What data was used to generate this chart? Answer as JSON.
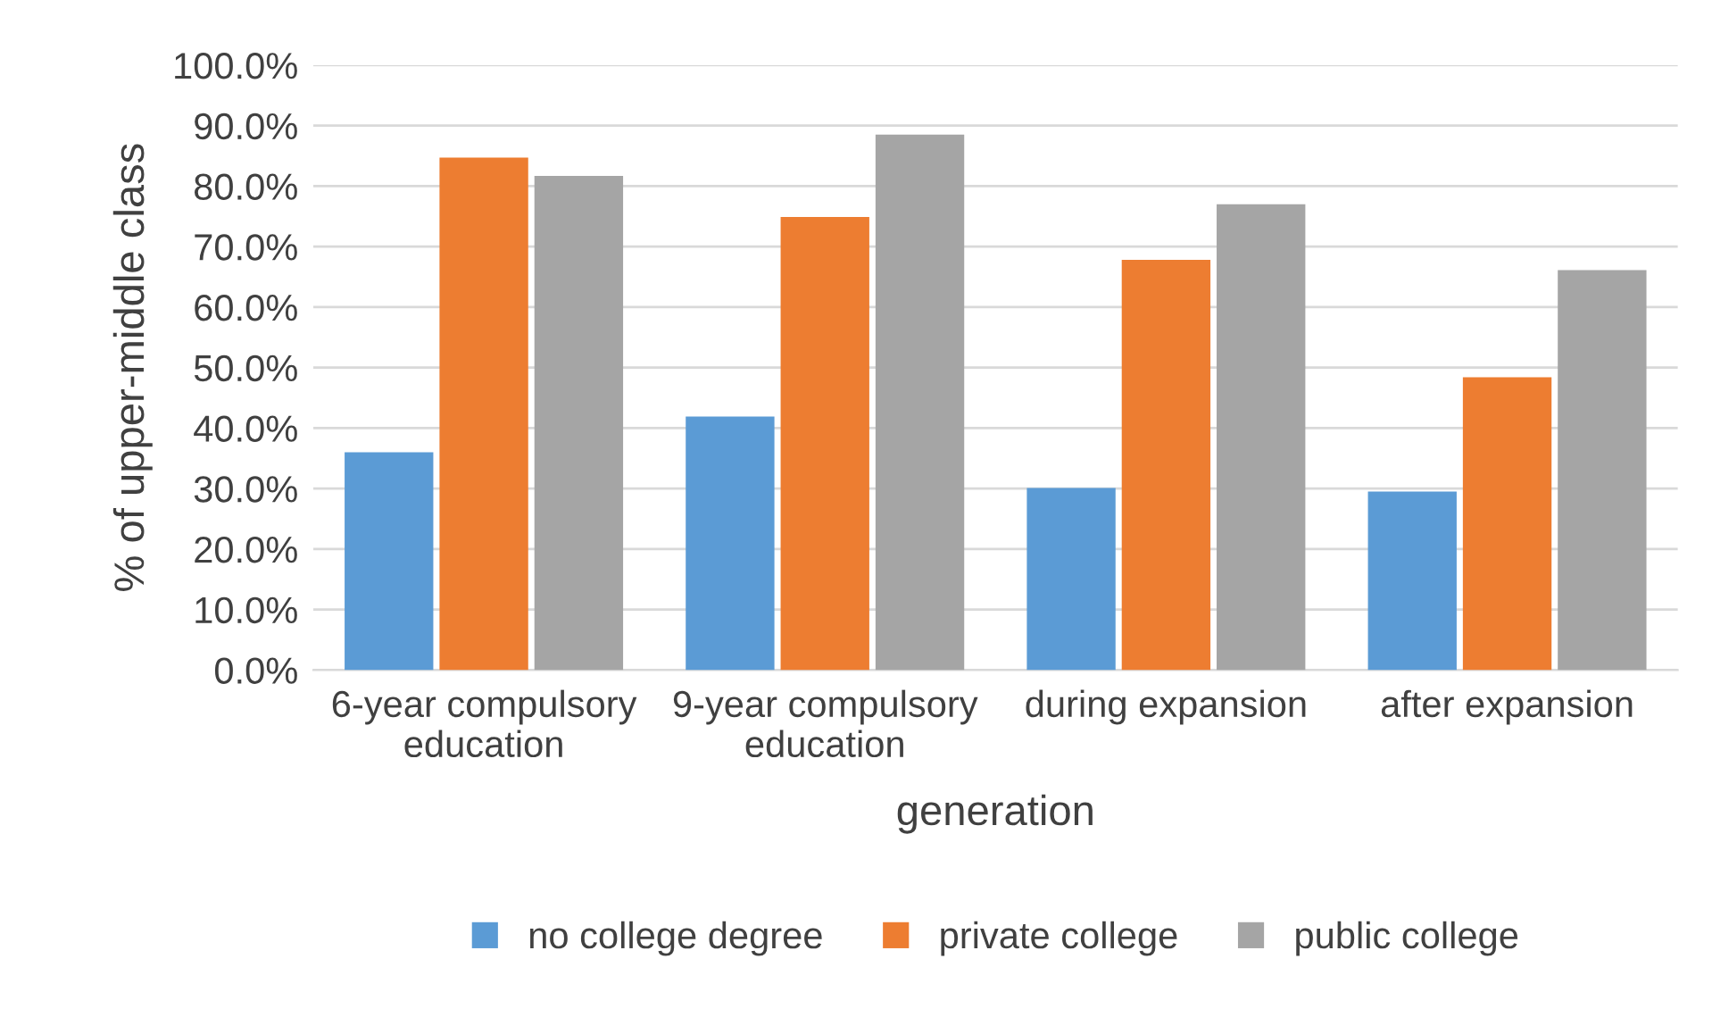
{
  "chart_data": {
    "type": "bar",
    "xlabel": "generation",
    "ylabel": "% of upper-middle class",
    "categories": [
      "6-year compulsory education",
      "9-year compulsory education",
      "during expansion",
      "after expansion"
    ],
    "series": [
      {
        "name": "no college degree",
        "color": "#5b9bd5",
        "values": [
          36.0,
          41.9,
          30.1,
          29.5
        ]
      },
      {
        "name": "private college",
        "color": "#ed7d31",
        "values": [
          84.7,
          74.9,
          67.8,
          48.4
        ]
      },
      {
        "name": "public college",
        "color": "#a5a5a5",
        "values": [
          81.7,
          88.5,
          77.0,
          66.1
        ]
      }
    ],
    "ylim": [
      0,
      100
    ],
    "yticks": [
      {
        "value": 0,
        "label": "0.0%"
      },
      {
        "value": 10,
        "label": "10.0%"
      },
      {
        "value": 20,
        "label": "20.0%"
      },
      {
        "value": 30,
        "label": "30.0%"
      },
      {
        "value": 40,
        "label": "40.0%"
      },
      {
        "value": 50,
        "label": "50.0%"
      },
      {
        "value": 60,
        "label": "60.0%"
      },
      {
        "value": 70,
        "label": "70.0%"
      },
      {
        "value": 80,
        "label": "80.0%"
      },
      {
        "value": 90,
        "label": "90.0%"
      },
      {
        "value": 100,
        "label": "100.0%"
      }
    ],
    "grid": "y",
    "legend": "bottom"
  }
}
